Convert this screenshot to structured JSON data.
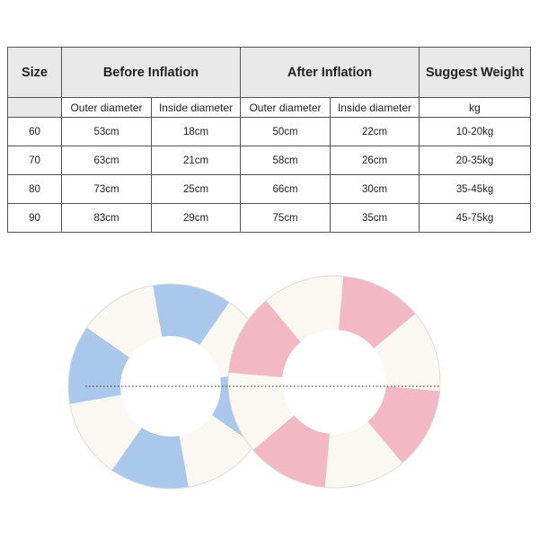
{
  "table": {
    "headers": {
      "size": "Size",
      "before": "Before Inflation",
      "after": "After Inflation",
      "weight": "Suggest Weight"
    },
    "subheaders": [
      "Outer diameter",
      "Inside diameter",
      "Outer diameter",
      "Inside diameter",
      "kg"
    ],
    "rows": [
      [
        "60",
        "53cm",
        "18cm",
        "50cm",
        "22cm",
        "10-20kg"
      ],
      [
        "70",
        "63cm",
        "21cm",
        "58cm",
        "26cm",
        "20-35kg"
      ],
      [
        "80",
        "73cm",
        "25cm",
        "66cm",
        "30cm",
        "35-45kg"
      ],
      [
        "90",
        "83cm",
        "29cm",
        "75cm",
        "35cm",
        "45-75kg"
      ]
    ]
  },
  "image": {
    "rings": [
      {
        "name": "blue-swim-ring",
        "color": "#a9c8ec"
      },
      {
        "name": "pink-swim-ring",
        "color": "#f2b9c4"
      }
    ],
    "stripe_color": "#faf8f0"
  }
}
